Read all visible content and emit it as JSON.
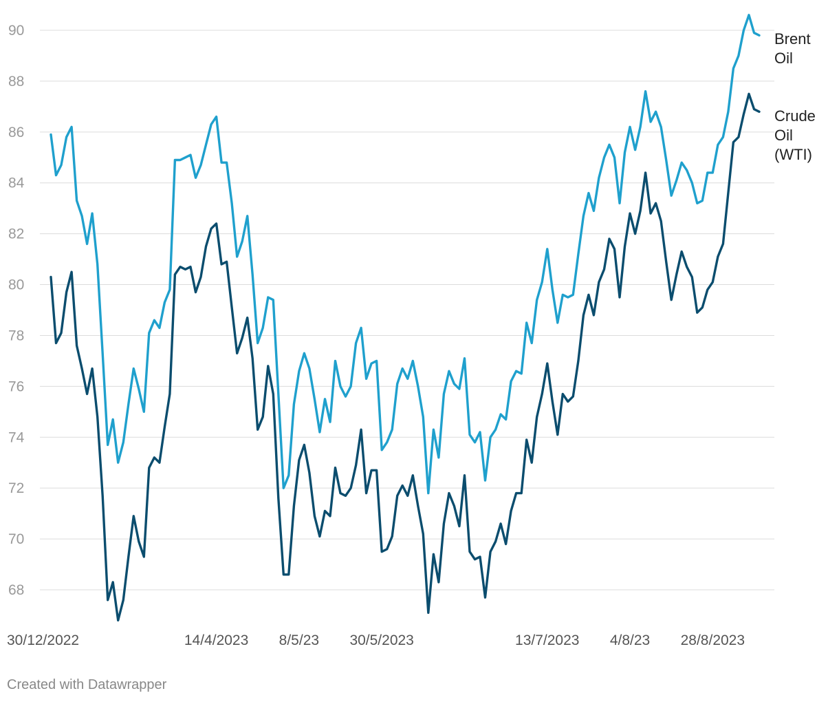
{
  "footer": {
    "credit": "Created with Datawrapper"
  },
  "colors": {
    "brent": "#1fa0cd",
    "wti": "#0b4d6e",
    "grid": "#dcdcdc",
    "tick_label": "#999999",
    "series_label": "#222222",
    "background": "#ffffff"
  },
  "chart_data": {
    "type": "line",
    "title": "",
    "xlabel": "",
    "ylabel": "",
    "ylim": [
      66.5,
      90.7
    ],
    "yticks": [
      68,
      70,
      72,
      74,
      76,
      78,
      80,
      82,
      84,
      86,
      88,
      90
    ],
    "grid": true,
    "legend": "inline-right",
    "x_tick_labels": [
      {
        "index": 0,
        "label": "30/12/2022"
      },
      {
        "index": 32,
        "label": "14/4/2023"
      },
      {
        "index": 48,
        "label": "8/5/23"
      },
      {
        "index": 64,
        "label": "30/5/2023"
      },
      {
        "index": 96,
        "label": "13/7/2023"
      },
      {
        "index": 112,
        "label": "4/8/23"
      },
      {
        "index": 128,
        "label": "28/8/2023"
      }
    ],
    "series": [
      {
        "name": "Brent Oil",
        "label_lines": [
          "Brent",
          "Oil"
        ],
        "color": "#1fa0cd",
        "values": [
          85.9,
          84.3,
          84.7,
          85.8,
          86.2,
          83.3,
          82.7,
          81.6,
          82.8,
          80.8,
          77.3,
          73.7,
          74.7,
          73.0,
          73.8,
          75.3,
          76.7,
          75.9,
          75.0,
          78.1,
          78.6,
          78.3,
          79.3,
          79.8,
          84.9,
          84.9,
          85.0,
          85.1,
          84.2,
          84.7,
          85.5,
          86.3,
          86.6,
          84.8,
          84.8,
          83.2,
          81.1,
          81.7,
          82.7,
          80.4,
          77.7,
          78.3,
          79.5,
          79.4,
          75.7,
          72.0,
          72.5,
          75.3,
          76.6,
          77.3,
          76.7,
          75.5,
          74.2,
          75.5,
          74.6,
          77.0,
          76.0,
          75.6,
          76.0,
          77.7,
          78.3,
          76.3,
          76.9,
          77.0,
          73.5,
          73.8,
          74.3,
          76.1,
          76.7,
          76.3,
          77.0,
          76.0,
          74.8,
          71.8,
          74.3,
          73.2,
          75.7,
          76.6,
          76.1,
          75.9,
          77.1,
          74.1,
          73.8,
          74.2,
          72.3,
          74.0,
          74.3,
          74.9,
          74.7,
          76.2,
          76.6,
          76.5,
          78.5,
          77.7,
          79.4,
          80.1,
          81.4,
          79.8,
          78.5,
          79.6,
          79.5,
          79.6,
          81.2,
          82.7,
          83.6,
          82.9,
          84.2,
          85.0,
          85.5,
          85.0,
          83.2,
          85.2,
          86.2,
          85.3,
          86.2,
          87.6,
          86.4,
          86.8,
          86.2,
          84.9,
          83.5,
          84.1,
          84.8,
          84.5,
          84.0,
          83.2,
          83.3,
          84.4,
          84.4,
          85.5,
          85.8,
          86.8,
          88.5,
          89.0,
          90.0,
          90.6,
          89.9,
          89.8
        ]
      },
      {
        "name": "Crude Oil (WTI)",
        "label_lines": [
          "Crude",
          "Oil",
          "(WTI)"
        ],
        "color": "#0b4d6e",
        "values": [
          80.3,
          77.7,
          78.1,
          79.7,
          80.5,
          77.6,
          76.7,
          75.7,
          76.7,
          74.8,
          71.7,
          67.6,
          68.3,
          66.8,
          67.6,
          69.3,
          70.9,
          69.9,
          69.3,
          72.8,
          73.2,
          73.0,
          74.4,
          75.7,
          80.4,
          80.7,
          80.6,
          80.7,
          79.7,
          80.3,
          81.5,
          82.2,
          82.4,
          80.8,
          80.9,
          79.1,
          77.3,
          77.9,
          78.7,
          77.1,
          74.3,
          74.8,
          76.8,
          75.7,
          71.6,
          68.6,
          68.6,
          71.3,
          73.1,
          73.7,
          72.6,
          70.9,
          70.1,
          71.1,
          70.9,
          72.8,
          71.8,
          71.7,
          72.0,
          72.9,
          74.3,
          71.8,
          72.7,
          72.7,
          69.5,
          69.6,
          70.1,
          71.7,
          72.1,
          71.7,
          72.5,
          71.3,
          70.2,
          67.1,
          69.4,
          68.3,
          70.6,
          71.8,
          71.3,
          70.5,
          72.5,
          69.5,
          69.2,
          69.3,
          67.7,
          69.5,
          69.9,
          70.6,
          69.8,
          71.1,
          71.8,
          71.8,
          73.9,
          73.0,
          74.8,
          75.7,
          76.9,
          75.4,
          74.1,
          75.7,
          75.4,
          75.6,
          77.0,
          78.8,
          79.6,
          78.8,
          80.1,
          80.6,
          81.8,
          81.4,
          79.5,
          81.5,
          82.8,
          82.0,
          82.9,
          84.4,
          82.8,
          83.2,
          82.5,
          80.9,
          79.4,
          80.4,
          81.3,
          80.7,
          80.3,
          78.9,
          79.1,
          79.8,
          80.1,
          81.1,
          81.6,
          83.6,
          85.6,
          85.8,
          86.7,
          87.5,
          86.9,
          86.8
        ]
      }
    ]
  }
}
